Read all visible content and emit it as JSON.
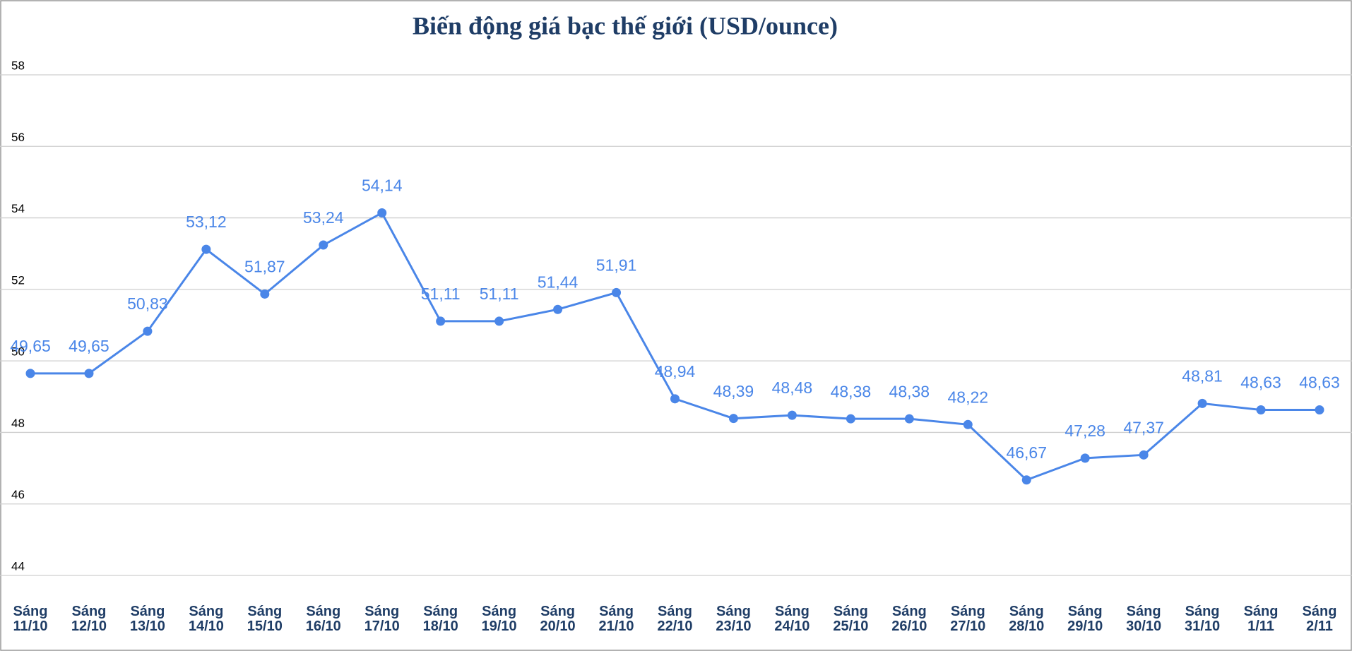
{
  "chart_data": {
    "type": "line",
    "title": "Biến động giá bạc thế giới (USD/ounce)",
    "categories": [
      "Sáng 11/10",
      "Sáng 12/10",
      "Sáng 13/10",
      "Sáng 14/10",
      "Sáng 15/10",
      "Sáng 16/10",
      "Sáng 17/10",
      "Sáng 18/10",
      "Sáng 19/10",
      "Sáng 20/10",
      "Sáng 21/10",
      "Sáng 22/10",
      "Sáng 23/10",
      "Sáng 24/10",
      "Sáng 25/10",
      "Sáng 26/10",
      "Sáng 27/10",
      "Sáng 28/10",
      "Sáng 29/10",
      "Sáng 30/10",
      "Sáng 31/10",
      "Sáng 1/11",
      "Sáng 2/11"
    ],
    "series": [
      {
        "color": "#4a86e8",
        "values": [
          49.65,
          49.65,
          50.83,
          53.12,
          51.87,
          53.24,
          54.14,
          51.11,
          51.11,
          51.44,
          51.91,
          48.94,
          48.39,
          48.48,
          48.38,
          48.38,
          48.22,
          46.67,
          47.28,
          47.37,
          48.81,
          48.63,
          48.63
        ],
        "value_labels": [
          "49,65",
          "49,65",
          "50,83",
          "53,12",
          "51,87",
          "53,24",
          "54,14",
          "51,11",
          "51,11",
          "51,44",
          "51,91",
          "48,94",
          "48,39",
          "48,48",
          "48,38",
          "48,38",
          "48,22",
          "46,67",
          "47,28",
          "47,37",
          "48,81",
          "48,63",
          "48,63"
        ]
      }
    ],
    "ylim": [
      44,
      58
    ],
    "yticks": [
      44,
      46,
      48,
      50,
      52,
      54,
      56,
      58
    ],
    "grid": true
  }
}
